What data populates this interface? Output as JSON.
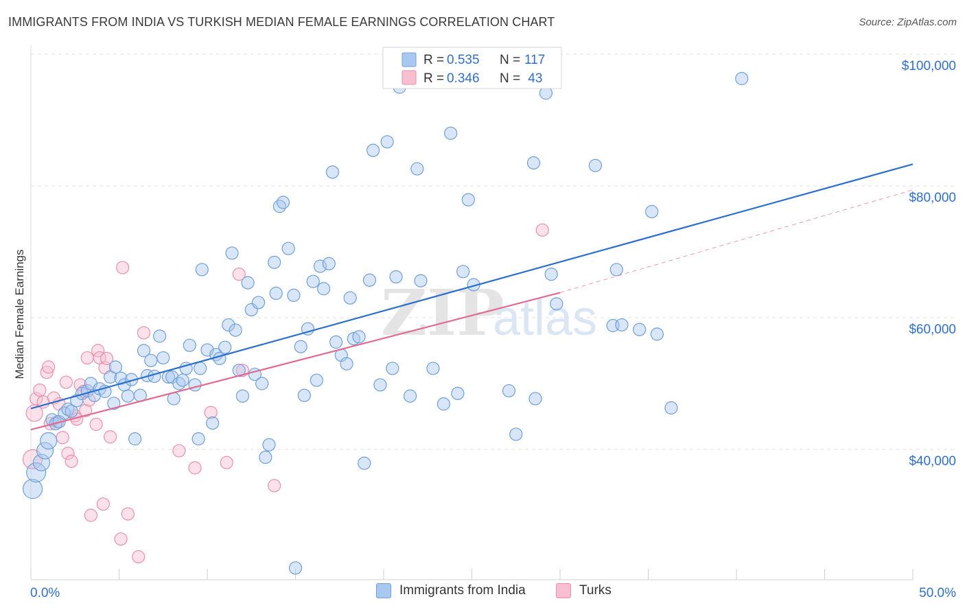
{
  "header": {
    "title": "IMMIGRANTS FROM INDIA VS TURKISH MEDIAN FEMALE EARNINGS CORRELATION CHART",
    "source": "Source: ZipAtlas.com"
  },
  "watermark": {
    "zip": "ZIP",
    "atlas": "atlas"
  },
  "legend_top": [
    {
      "r_label": "R = ",
      "r_value": "0.535",
      "n_label": "N = ",
      "n_value": "117"
    },
    {
      "r_label": "R = ",
      "r_value": "0.346",
      "n_label": "N = ",
      "n_value": " 43"
    }
  ],
  "legend_bottom": [
    {
      "label": "Immigrants from India"
    },
    {
      "label": "Turks"
    }
  ],
  "colors": {
    "india_fill": "#a9c8f0",
    "india_stroke": "#6e9fd8",
    "india_line": "#2b6fcc",
    "turks_fill": "#f7bfd0",
    "turks_stroke": "#ea8fab",
    "turks_line": "#e06b92",
    "axis_text": "#2f6fc9",
    "grid": "#dcdcdc"
  },
  "chart_data": {
    "type": "scatter",
    "title": "IMMIGRANTS FROM INDIA VS TURKISH MEDIAN FEMALE EARNINGS CORRELATION CHART",
    "xlabel": "",
    "ylabel": "Median Female Earnings",
    "xlim": [
      0,
      50
    ],
    "ylim": [
      21000,
      102000
    ],
    "x_tick_labels": [
      {
        "value": 0,
        "label": "0.0%"
      },
      {
        "value": 50,
        "label": "50.0%"
      }
    ],
    "y_ticks": [
      {
        "value": 40000,
        "label": "$40,000"
      },
      {
        "value": 60000,
        "label": "$60,000"
      },
      {
        "value": 80000,
        "label": "$80,000"
      },
      {
        "value": 100000,
        "label": "$100,000"
      }
    ],
    "series": [
      {
        "name": "Immigrants from India",
        "r": 0.535,
        "n": 117,
        "trend": {
          "x": [
            0,
            50
          ],
          "y": [
            46200,
            83300
          ]
        },
        "points": [
          {
            "x": 0.1,
            "y": 34000,
            "s": 2
          },
          {
            "x": 0.3,
            "y": 36500,
            "s": 2
          },
          {
            "x": 0.6,
            "y": 38000,
            "s": 1
          },
          {
            "x": 0.8,
            "y": 39800,
            "s": 1
          },
          {
            "x": 1.0,
            "y": 41300,
            "s": 1
          },
          {
            "x": 1.2,
            "y": 44500,
            "s": 0
          },
          {
            "x": 1.4,
            "y": 43900,
            "s": 0
          },
          {
            "x": 1.6,
            "y": 44200,
            "s": 0
          },
          {
            "x": 1.9,
            "y": 45500,
            "s": 0
          },
          {
            "x": 2.1,
            "y": 46100,
            "s": 0
          },
          {
            "x": 2.3,
            "y": 45800,
            "s": 0
          },
          {
            "x": 2.6,
            "y": 47400,
            "s": 0
          },
          {
            "x": 2.9,
            "y": 48500,
            "s": 0
          },
          {
            "x": 3.2,
            "y": 48900,
            "s": 0
          },
          {
            "x": 3.4,
            "y": 50000,
            "s": 0
          },
          {
            "x": 3.6,
            "y": 48200,
            "s": 0
          },
          {
            "x": 3.9,
            "y": 49200,
            "s": 0
          },
          {
            "x": 4.2,
            "y": 48800,
            "s": 0
          },
          {
            "x": 4.5,
            "y": 51000,
            "s": 0
          },
          {
            "x": 4.7,
            "y": 47000,
            "s": 0
          },
          {
            "x": 4.8,
            "y": 52500,
            "s": 0
          },
          {
            "x": 5.1,
            "y": 50800,
            "s": 0
          },
          {
            "x": 5.3,
            "y": 49800,
            "s": 0
          },
          {
            "x": 5.5,
            "y": 48100,
            "s": 0
          },
          {
            "x": 5.7,
            "y": 50600,
            "s": 0
          },
          {
            "x": 5.9,
            "y": 41600,
            "s": 0
          },
          {
            "x": 6.2,
            "y": 48200,
            "s": 0
          },
          {
            "x": 6.4,
            "y": 55000,
            "s": 0
          },
          {
            "x": 6.6,
            "y": 51200,
            "s": 0
          },
          {
            "x": 6.8,
            "y": 53500,
            "s": 0
          },
          {
            "x": 7.0,
            "y": 51100,
            "s": 0
          },
          {
            "x": 7.3,
            "y": 57200,
            "s": 0
          },
          {
            "x": 7.5,
            "y": 53900,
            "s": 0
          },
          {
            "x": 7.8,
            "y": 51000,
            "s": 0
          },
          {
            "x": 8.0,
            "y": 51000,
            "s": 0
          },
          {
            "x": 8.1,
            "y": 47700,
            "s": 0
          },
          {
            "x": 8.4,
            "y": 50000,
            "s": 0
          },
          {
            "x": 8.6,
            "y": 50500,
            "s": 0
          },
          {
            "x": 8.8,
            "y": 52300,
            "s": 0
          },
          {
            "x": 9.0,
            "y": 55800,
            "s": 0
          },
          {
            "x": 9.3,
            "y": 49800,
            "s": 0
          },
          {
            "x": 9.5,
            "y": 41600,
            "s": 0
          },
          {
            "x": 9.6,
            "y": 52300,
            "s": 0
          },
          {
            "x": 9.7,
            "y": 67300,
            "s": 0
          },
          {
            "x": 10.0,
            "y": 55100,
            "s": 0
          },
          {
            "x": 10.3,
            "y": 44000,
            "s": 0
          },
          {
            "x": 10.5,
            "y": 54400,
            "s": 0
          },
          {
            "x": 10.7,
            "y": 53800,
            "s": 0
          },
          {
            "x": 11.0,
            "y": 55500,
            "s": 0
          },
          {
            "x": 11.2,
            "y": 58900,
            "s": 0
          },
          {
            "x": 11.4,
            "y": 69800,
            "s": 0
          },
          {
            "x": 11.6,
            "y": 58100,
            "s": 0
          },
          {
            "x": 11.8,
            "y": 52000,
            "s": 0
          },
          {
            "x": 12.0,
            "y": 48100,
            "s": 0
          },
          {
            "x": 12.3,
            "y": 65300,
            "s": 0
          },
          {
            "x": 12.5,
            "y": 61200,
            "s": 0
          },
          {
            "x": 12.7,
            "y": 51400,
            "s": 0
          },
          {
            "x": 12.9,
            "y": 62300,
            "s": 0
          },
          {
            "x": 13.1,
            "y": 50000,
            "s": 0
          },
          {
            "x": 13.3,
            "y": 38800,
            "s": 0
          },
          {
            "x": 13.5,
            "y": 40700,
            "s": 0
          },
          {
            "x": 13.8,
            "y": 68400,
            "s": 0
          },
          {
            "x": 13.9,
            "y": 63700,
            "s": 0
          },
          {
            "x": 14.1,
            "y": 76900,
            "s": 0
          },
          {
            "x": 14.3,
            "y": 77500,
            "s": 0
          },
          {
            "x": 14.6,
            "y": 70500,
            "s": 0
          },
          {
            "x": 14.9,
            "y": 63400,
            "s": 0
          },
          {
            "x": 15.0,
            "y": 22000,
            "s": 0
          },
          {
            "x": 15.3,
            "y": 55600,
            "s": 0
          },
          {
            "x": 15.5,
            "y": 48200,
            "s": 0
          },
          {
            "x": 15.7,
            "y": 58300,
            "s": 0
          },
          {
            "x": 16.0,
            "y": 65500,
            "s": 0
          },
          {
            "x": 16.2,
            "y": 50500,
            "s": 0
          },
          {
            "x": 16.4,
            "y": 67800,
            "s": 0
          },
          {
            "x": 16.6,
            "y": 64400,
            "s": 0
          },
          {
            "x": 16.9,
            "y": 68200,
            "s": 0
          },
          {
            "x": 17.1,
            "y": 82100,
            "s": 0
          },
          {
            "x": 17.3,
            "y": 56300,
            "s": 0
          },
          {
            "x": 17.6,
            "y": 54300,
            "s": 0
          },
          {
            "x": 17.9,
            "y": 53000,
            "s": 0
          },
          {
            "x": 18.1,
            "y": 63000,
            "s": 0
          },
          {
            "x": 18.3,
            "y": 56800,
            "s": 0
          },
          {
            "x": 18.6,
            "y": 57100,
            "s": 0
          },
          {
            "x": 18.9,
            "y": 37900,
            "s": 0
          },
          {
            "x": 19.2,
            "y": 65700,
            "s": 0
          },
          {
            "x": 19.4,
            "y": 85400,
            "s": 0
          },
          {
            "x": 19.8,
            "y": 49800,
            "s": 0
          },
          {
            "x": 20.2,
            "y": 86700,
            "s": 0
          },
          {
            "x": 20.5,
            "y": 52300,
            "s": 0
          },
          {
            "x": 20.7,
            "y": 66200,
            "s": 0
          },
          {
            "x": 20.9,
            "y": 95000,
            "s": 0
          },
          {
            "x": 21.5,
            "y": 48100,
            "s": 0
          },
          {
            "x": 21.9,
            "y": 82600,
            "s": 0
          },
          {
            "x": 22.1,
            "y": 65600,
            "s": 0
          },
          {
            "x": 22.8,
            "y": 52300,
            "s": 0
          },
          {
            "x": 23.4,
            "y": 46900,
            "s": 0
          },
          {
            "x": 23.8,
            "y": 88000,
            "s": 0
          },
          {
            "x": 24.2,
            "y": 48500,
            "s": 0
          },
          {
            "x": 24.5,
            "y": 67000,
            "s": 0
          },
          {
            "x": 24.8,
            "y": 77900,
            "s": 0
          },
          {
            "x": 25.1,
            "y": 65000,
            "s": 0
          },
          {
            "x": 27.1,
            "y": 48900,
            "s": 0
          },
          {
            "x": 27.5,
            "y": 42300,
            "s": 0
          },
          {
            "x": 28.5,
            "y": 83500,
            "s": 0
          },
          {
            "x": 28.6,
            "y": 47700,
            "s": 0
          },
          {
            "x": 29.2,
            "y": 94100,
            "s": 0
          },
          {
            "x": 29.5,
            "y": 66600,
            "s": 0
          },
          {
            "x": 29.8,
            "y": 62100,
            "s": 0
          },
          {
            "x": 32.0,
            "y": 83100,
            "s": 0
          },
          {
            "x": 33.0,
            "y": 58800,
            "s": 0
          },
          {
            "x": 33.2,
            "y": 67300,
            "s": 0
          },
          {
            "x": 33.5,
            "y": 58900,
            "s": 0
          },
          {
            "x": 34.5,
            "y": 58200,
            "s": 0
          },
          {
            "x": 35.2,
            "y": 76100,
            "s": 0
          },
          {
            "x": 35.5,
            "y": 57500,
            "s": 0
          },
          {
            "x": 36.3,
            "y": 46300,
            "s": 0
          },
          {
            "x": 40.3,
            "y": 96300,
            "s": 0
          }
        ]
      },
      {
        "name": "Turks",
        "r": 0.346,
        "n": 43,
        "trend": {
          "x": [
            0,
            30
          ],
          "y": [
            43000,
            63800
          ]
        },
        "trend_extension": {
          "x": [
            30,
            50
          ],
          "y": [
            63800,
            79400
          ]
        },
        "points": [
          {
            "x": 0.1,
            "y": 38500,
            "s": 2
          },
          {
            "x": 0.2,
            "y": 45500,
            "s": 1
          },
          {
            "x": 0.3,
            "y": 47700,
            "s": 0
          },
          {
            "x": 0.5,
            "y": 49000,
            "s": 0
          },
          {
            "x": 0.7,
            "y": 47200,
            "s": 0
          },
          {
            "x": 0.9,
            "y": 51700,
            "s": 0
          },
          {
            "x": 1.0,
            "y": 52500,
            "s": 0
          },
          {
            "x": 1.1,
            "y": 43900,
            "s": 0
          },
          {
            "x": 1.3,
            "y": 47800,
            "s": 0
          },
          {
            "x": 1.5,
            "y": 44200,
            "s": 0
          },
          {
            "x": 1.6,
            "y": 46900,
            "s": 0
          },
          {
            "x": 1.8,
            "y": 41800,
            "s": 0
          },
          {
            "x": 2.0,
            "y": 50200,
            "s": 0
          },
          {
            "x": 2.1,
            "y": 39400,
            "s": 0
          },
          {
            "x": 2.3,
            "y": 38200,
            "s": 0
          },
          {
            "x": 2.5,
            "y": 45100,
            "s": 0
          },
          {
            "x": 2.6,
            "y": 44600,
            "s": 0
          },
          {
            "x": 2.8,
            "y": 49800,
            "s": 0
          },
          {
            "x": 3.0,
            "y": 48800,
            "s": 0
          },
          {
            "x": 3.1,
            "y": 45900,
            "s": 0
          },
          {
            "x": 3.2,
            "y": 53900,
            "s": 0
          },
          {
            "x": 3.3,
            "y": 47500,
            "s": 0
          },
          {
            "x": 3.4,
            "y": 30000,
            "s": 0
          },
          {
            "x": 3.7,
            "y": 43800,
            "s": 0
          },
          {
            "x": 3.8,
            "y": 55000,
            "s": 0
          },
          {
            "x": 3.9,
            "y": 53900,
            "s": 0
          },
          {
            "x": 4.1,
            "y": 31700,
            "s": 0
          },
          {
            "x": 4.2,
            "y": 52400,
            "s": 0
          },
          {
            "x": 4.3,
            "y": 53800,
            "s": 0
          },
          {
            "x": 4.5,
            "y": 41900,
            "s": 0
          },
          {
            "x": 5.1,
            "y": 26400,
            "s": 0
          },
          {
            "x": 5.2,
            "y": 67600,
            "s": 0
          },
          {
            "x": 5.5,
            "y": 30200,
            "s": 0
          },
          {
            "x": 6.1,
            "y": 23700,
            "s": 0
          },
          {
            "x": 6.4,
            "y": 57700,
            "s": 0
          },
          {
            "x": 8.4,
            "y": 39800,
            "s": 0
          },
          {
            "x": 9.3,
            "y": 37200,
            "s": 0
          },
          {
            "x": 10.2,
            "y": 45600,
            "s": 0
          },
          {
            "x": 11.1,
            "y": 38000,
            "s": 0
          },
          {
            "x": 11.8,
            "y": 66600,
            "s": 0
          },
          {
            "x": 12.0,
            "y": 52000,
            "s": 0
          },
          {
            "x": 29.0,
            "y": 73300,
            "s": 0
          },
          {
            "x": 13.8,
            "y": 34500,
            "s": 0
          }
        ]
      }
    ]
  }
}
